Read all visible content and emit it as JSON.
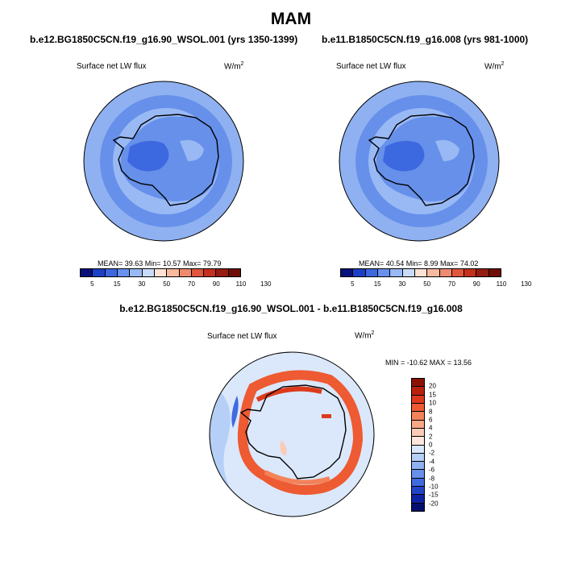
{
  "title": "MAM",
  "panels": [
    {
      "title": "b.e12.BG1850C5CN.f19_g16.90_WSOL.001 (yrs 1350-1399)",
      "variable": "Surface net LW flux",
      "units": "W/m",
      "units_sup": "2",
      "stats": "MEAN=  39.63  Min=  10.57  Max=  79.79"
    },
    {
      "title": "b.e11.B1850C5CN.f19_g16.008 (yrs 981-1000)",
      "variable": "Surface net LW flux",
      "units": "W/m",
      "units_sup": "2",
      "stats": "MEAN=  40.54  Min=   8.99  Max=  74.02"
    },
    {
      "title": "b.e12.BG1850C5CN.f19_g16.90_WSOL.001 - b.e11.B1850C5CN.f19_g16.008",
      "variable": "Surface net LW flux",
      "units": "W/m",
      "units_sup": "2",
      "stats": "MIN = -10.62 MAX =  13.56"
    }
  ],
  "colorbar_top": {
    "ticks": [
      "5",
      "15",
      "30",
      "50",
      "70",
      "90",
      "110",
      "130"
    ],
    "colors": [
      "#08107a",
      "#1b3fc6",
      "#3c68e0",
      "#6890ee",
      "#99b9f5",
      "#c8dcfa",
      "#fde3d3",
      "#f9b99f",
      "#f08a6e",
      "#e0573e",
      "#c4301e",
      "#961b10",
      "#6e0d06"
    ]
  },
  "colorbar_diff": {
    "ticks": [
      "20",
      "15",
      "10",
      "8",
      "6",
      "4",
      "2",
      "0",
      "-2",
      "-4",
      "-6",
      "-8",
      "-10",
      "-15",
      "-20"
    ],
    "colors": [
      "#8a1205",
      "#b8220d",
      "#dd3a1c",
      "#ee5a32",
      "#f3825a",
      "#f7a887",
      "#facbb7",
      "#fde6dc",
      "#dbe8fb",
      "#b6cff7",
      "#8fb1f1",
      "#6690ea",
      "#3f6ae0",
      "#2245c8",
      "#0f23a2",
      "#070f6e"
    ]
  }
}
